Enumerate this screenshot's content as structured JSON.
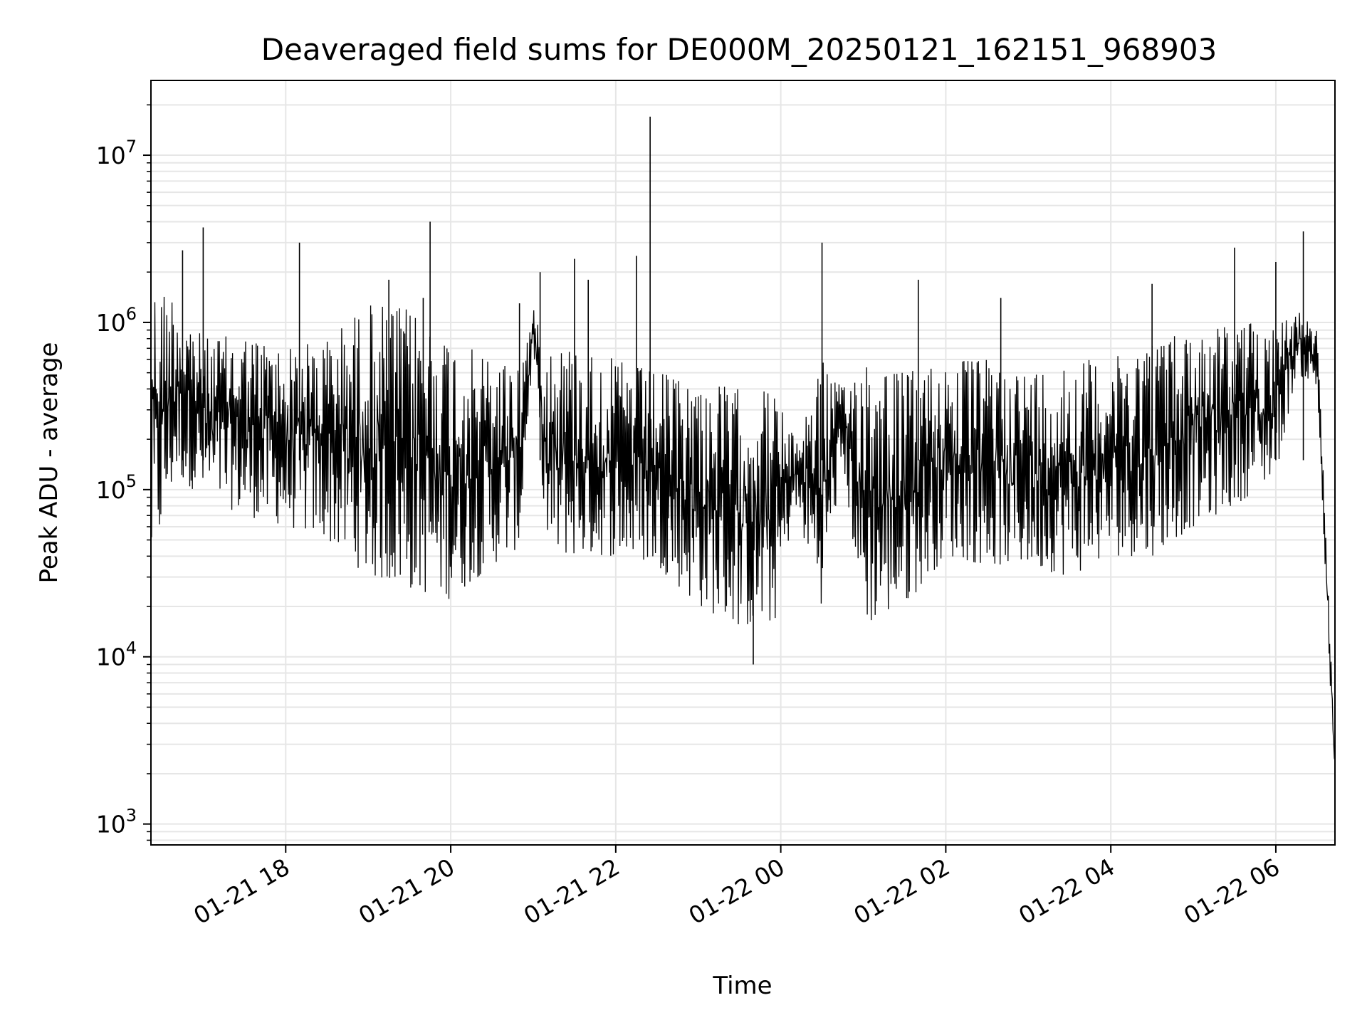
{
  "chart_data": {
    "type": "line",
    "title": "Deaveraged field sums for DE000M_20250121_162151_968903",
    "xlabel": "Time",
    "ylabel": "Peak ADU - average",
    "yscale": "log",
    "ylim": [
      750,
      28000000
    ],
    "xlim": [
      "2025-01-21 16:22",
      "2025-01-22 06:43"
    ],
    "grid": true,
    "line_color": "#000000",
    "x_ticks": [
      {
        "t": "2025-01-21 18:00",
        "label": "01-21 18"
      },
      {
        "t": "2025-01-21 20:00",
        "label": "01-21 20"
      },
      {
        "t": "2025-01-21 22:00",
        "label": "01-21 22"
      },
      {
        "t": "2025-01-22 00:00",
        "label": "01-22 00"
      },
      {
        "t": "2025-01-22 02:00",
        "label": "01-22 02"
      },
      {
        "t": "2025-01-22 04:00",
        "label": "01-22 04"
      },
      {
        "t": "2025-01-22 06:00",
        "label": "01-22 06"
      }
    ],
    "y_ticks": [
      {
        "value": 1000,
        "base": "10",
        "exp": "3"
      },
      {
        "value": 10000,
        "base": "10",
        "exp": "4"
      },
      {
        "value": 100000,
        "base": "10",
        "exp": "5"
      },
      {
        "value": 1000000,
        "base": "10",
        "exp": "6"
      },
      {
        "value": 10000000,
        "base": "10",
        "exp": "7"
      }
    ],
    "series": [
      {
        "envelope": [
          [
            "2025-01-21 16:22",
            30000,
            1700000
          ],
          [
            "2025-01-21 16:40",
            120000,
            1500000
          ],
          [
            "2025-01-21 17:00",
            90000,
            800000
          ],
          [
            "2025-01-21 17:30",
            70000,
            850000
          ],
          [
            "2025-01-21 18:00",
            60000,
            700000
          ],
          [
            "2025-01-21 18:30",
            50000,
            800000
          ],
          [
            "2025-01-21 19:00",
            30000,
            1300000
          ],
          [
            "2025-01-21 19:30",
            25000,
            1200000
          ],
          [
            "2025-01-21 20:00",
            22000,
            800000
          ],
          [
            "2025-01-21 20:30",
            35000,
            600000
          ],
          [
            "2025-01-21 20:50",
            45000,
            600000
          ],
          [
            "2025-01-21 21:00",
            700000,
            1200000
          ],
          [
            "2025-01-21 21:10",
            40000,
            800000
          ],
          [
            "2025-01-21 21:30",
            40000,
            700000
          ],
          [
            "2025-01-21 22:00",
            40000,
            600000
          ],
          [
            "2025-01-21 22:30",
            35000,
            500000
          ],
          [
            "2025-01-21 23:00",
            20000,
            450000
          ],
          [
            "2025-01-21 23:30",
            15000,
            400000
          ],
          [
            "2025-01-21 23:55",
            15000,
            400000
          ],
          [
            "2025-01-22 00:10",
            80000,
            200000
          ],
          [
            "2025-01-22 00:30",
            20000,
            600000
          ],
          [
            "2025-01-22 00:45",
            150000,
            400000
          ],
          [
            "2025-01-22 01:00",
            15000,
            700000
          ],
          [
            "2025-01-22 01:30",
            20000,
            500000
          ],
          [
            "2025-01-22 02:00",
            40000,
            600000
          ],
          [
            "2025-01-22 02:30",
            35000,
            600000
          ],
          [
            "2025-01-22 03:00",
            35000,
            500000
          ],
          [
            "2025-01-22 03:30",
            30000,
            600000
          ],
          [
            "2025-01-22 04:00",
            40000,
            600000
          ],
          [
            "2025-01-22 04:30",
            40000,
            800000
          ],
          [
            "2025-01-22 05:00",
            60000,
            900000
          ],
          [
            "2025-01-22 05:30",
            80000,
            1000000
          ],
          [
            "2025-01-22 06:00",
            120000,
            1000000
          ],
          [
            "2025-01-22 06:15",
            500000,
            1200000
          ],
          [
            "2025-01-22 06:30",
            400000,
            900000
          ],
          [
            "2025-01-22 06:43",
            1500,
            3000
          ]
        ],
        "spikes": [
          [
            "2025-01-21 16:45",
            2700000
          ],
          [
            "2025-01-21 17:00",
            3700000
          ],
          [
            "2025-01-21 18:10",
            3000000
          ],
          [
            "2025-01-21 19:15",
            1800000
          ],
          [
            "2025-01-21 19:40",
            1400000
          ],
          [
            "2025-01-21 19:45",
            4000000
          ],
          [
            "2025-01-21 20:50",
            1300000
          ],
          [
            "2025-01-21 21:05",
            2000000
          ],
          [
            "2025-01-21 21:30",
            2400000
          ],
          [
            "2025-01-21 21:40",
            1800000
          ],
          [
            "2025-01-21 22:15",
            2500000
          ],
          [
            "2025-01-21 22:25",
            17000000
          ],
          [
            "2025-01-21 23:40",
            9000
          ],
          [
            "2025-01-22 00:30",
            3000000
          ],
          [
            "2025-01-22 01:40",
            1800000
          ],
          [
            "2025-01-22 02:40",
            1400000
          ],
          [
            "2025-01-22 04:30",
            1700000
          ],
          [
            "2025-01-22 05:30",
            2800000
          ],
          [
            "2025-01-22 06:00",
            2300000
          ],
          [
            "2025-01-22 06:20",
            3500000
          ]
        ]
      }
    ]
  }
}
